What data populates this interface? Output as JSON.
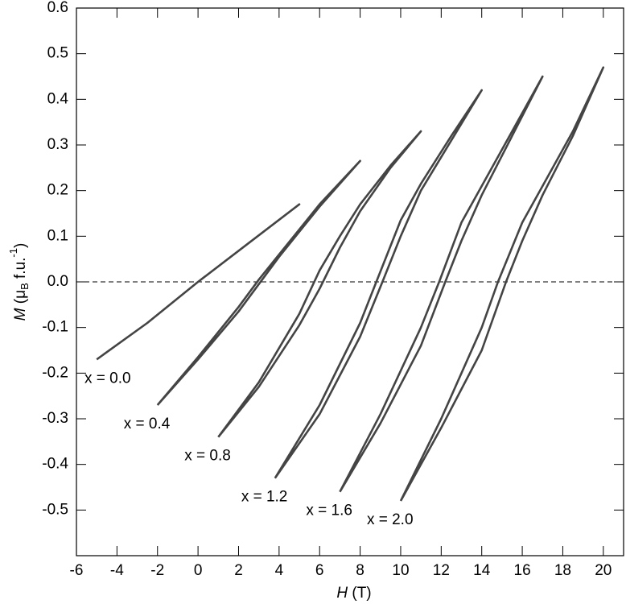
{
  "chart_data": {
    "type": "line",
    "xlabel": [
      "H",
      " (T)"
    ],
    "ylabel": [
      "M",
      " (μ",
      "B",
      " f.u.",
      "-1",
      ")"
    ],
    "xlim": [
      -6,
      21
    ],
    "ylim": [
      -0.6,
      0.6
    ],
    "xticks": [
      -6,
      -4,
      -2,
      0,
      2,
      4,
      6,
      8,
      10,
      12,
      14,
      16,
      18,
      20
    ],
    "yticks": [
      -0.5,
      -0.4,
      -0.3,
      -0.2,
      -0.1,
      {
        "value": 0,
        "label": "0.0"
      },
      0.1,
      0.2,
      0.3,
      0.4,
      0.5,
      0.6
    ],
    "hline": 0,
    "series": [
      {
        "name": "x = 0.0",
        "color": "#444444",
        "x": [
          -5,
          -2.5,
          0,
          2.5,
          5,
          2.5,
          0,
          -2.5,
          -5
        ],
        "values": [
          -0.17,
          -0.09,
          0.0,
          0.085,
          0.17,
          0.085,
          0.0,
          -0.09,
          -0.17
        ]
      },
      {
        "name": "x = 0.4",
        "color": "#444444",
        "x": [
          -2,
          0,
          2,
          3,
          4,
          6,
          8,
          6,
          4,
          3,
          2,
          0,
          -2
        ],
        "values": [
          -0.27,
          -0.17,
          -0.065,
          -0.005,
          0.055,
          0.165,
          0.265,
          0.17,
          0.06,
          0.005,
          -0.055,
          -0.165,
          -0.27
        ]
      },
      {
        "name": "x = 0.8",
        "color": "#444444",
        "x": [
          1,
          3,
          5,
          6,
          7,
          8,
          9.5,
          11,
          9.5,
          8,
          7,
          6,
          5,
          3,
          1
        ],
        "values": [
          -0.34,
          -0.23,
          -0.095,
          -0.015,
          0.075,
          0.155,
          0.25,
          0.33,
          0.255,
          0.17,
          0.1,
          0.025,
          -0.07,
          -0.22,
          -0.34
        ]
      },
      {
        "name": "x = 1.2",
        "color": "#444444",
        "x": [
          3.8,
          6,
          8,
          9.1,
          10,
          11,
          12.5,
          14,
          12.5,
          11,
          10,
          8.8,
          8,
          6,
          3.8
        ],
        "values": [
          -0.43,
          -0.29,
          -0.12,
          0.0,
          0.1,
          0.2,
          0.31,
          0.42,
          0.32,
          0.215,
          0.135,
          0.0,
          -0.09,
          -0.27,
          -0.43
        ]
      },
      {
        "name": "x = 1.6",
        "color": "#444444",
        "x": [
          7,
          9,
          11,
          12.2,
          13,
          14,
          15.5,
          17,
          15.5,
          14,
          13,
          11.9,
          11,
          9,
          7
        ],
        "values": [
          -0.46,
          -0.31,
          -0.14,
          0.0,
          0.09,
          0.19,
          0.32,
          0.45,
          0.33,
          0.21,
          0.13,
          0.0,
          -0.1,
          -0.29,
          -0.46
        ]
      },
      {
        "name": "x = 2.0",
        "color": "#444444",
        "x": [
          10,
          12,
          14,
          15.2,
          16,
          17,
          18.5,
          20,
          18.5,
          17,
          16,
          14.8,
          14,
          12,
          10
        ],
        "values": [
          -0.48,
          -0.32,
          -0.15,
          0.0,
          0.09,
          0.19,
          0.32,
          0.47,
          0.33,
          0.21,
          0.13,
          0.0,
          -0.1,
          -0.3,
          -0.48
        ]
      }
    ]
  }
}
